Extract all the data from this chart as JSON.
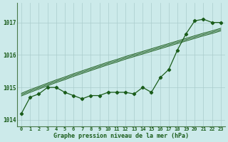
{
  "xlabel": "Graphe pression niveau de la mer (hPa)",
  "background_color": "#cceaea",
  "grid_color": "#aacccc",
  "line_color": "#1a5c1a",
  "ylim": [
    1013.8,
    1017.6
  ],
  "yticks": [
    1014,
    1015,
    1016,
    1017
  ],
  "xlim": [
    -0.5,
    23.5
  ],
  "xticks": [
    0,
    1,
    2,
    3,
    4,
    5,
    6,
    7,
    8,
    9,
    10,
    11,
    12,
    13,
    14,
    15,
    16,
    17,
    18,
    19,
    20,
    21,
    22,
    23
  ],
  "hours": [
    0,
    1,
    2,
    3,
    4,
    5,
    6,
    7,
    8,
    9,
    10,
    11,
    12,
    13,
    14,
    15,
    16,
    17,
    18,
    19,
    20,
    21,
    22,
    23
  ],
  "pressure_actual": [
    1014.2,
    1014.7,
    1014.8,
    1015.0,
    1015.0,
    1014.85,
    1014.75,
    1014.65,
    1014.75,
    1014.75,
    1014.85,
    1014.85,
    1014.85,
    1014.8,
    1015.0,
    1014.85,
    1015.3,
    1015.55,
    1016.15,
    1016.65,
    1017.05,
    1017.1,
    1017.0,
    1017.0
  ],
  "trend_mid": [
    1014.78,
    1014.89,
    1014.99,
    1015.09,
    1015.19,
    1015.28,
    1015.38,
    1015.47,
    1015.56,
    1015.65,
    1015.74,
    1015.82,
    1015.91,
    1015.99,
    1016.07,
    1016.15,
    1016.23,
    1016.31,
    1016.39,
    1016.47,
    1016.55,
    1016.63,
    1016.7,
    1016.78
  ],
  "trend_upper": [
    1014.82,
    1014.93,
    1015.03,
    1015.13,
    1015.23,
    1015.32,
    1015.42,
    1015.51,
    1015.6,
    1015.69,
    1015.78,
    1015.86,
    1015.95,
    1016.03,
    1016.11,
    1016.19,
    1016.27,
    1016.35,
    1016.43,
    1016.51,
    1016.59,
    1016.67,
    1016.74,
    1016.82
  ],
  "trend_lower": [
    1014.74,
    1014.85,
    1014.95,
    1015.05,
    1015.15,
    1015.24,
    1015.34,
    1015.43,
    1015.52,
    1015.61,
    1015.7,
    1015.78,
    1015.87,
    1015.95,
    1016.03,
    1016.11,
    1016.19,
    1016.27,
    1016.35,
    1016.43,
    1016.51,
    1016.59,
    1016.66,
    1016.74
  ]
}
